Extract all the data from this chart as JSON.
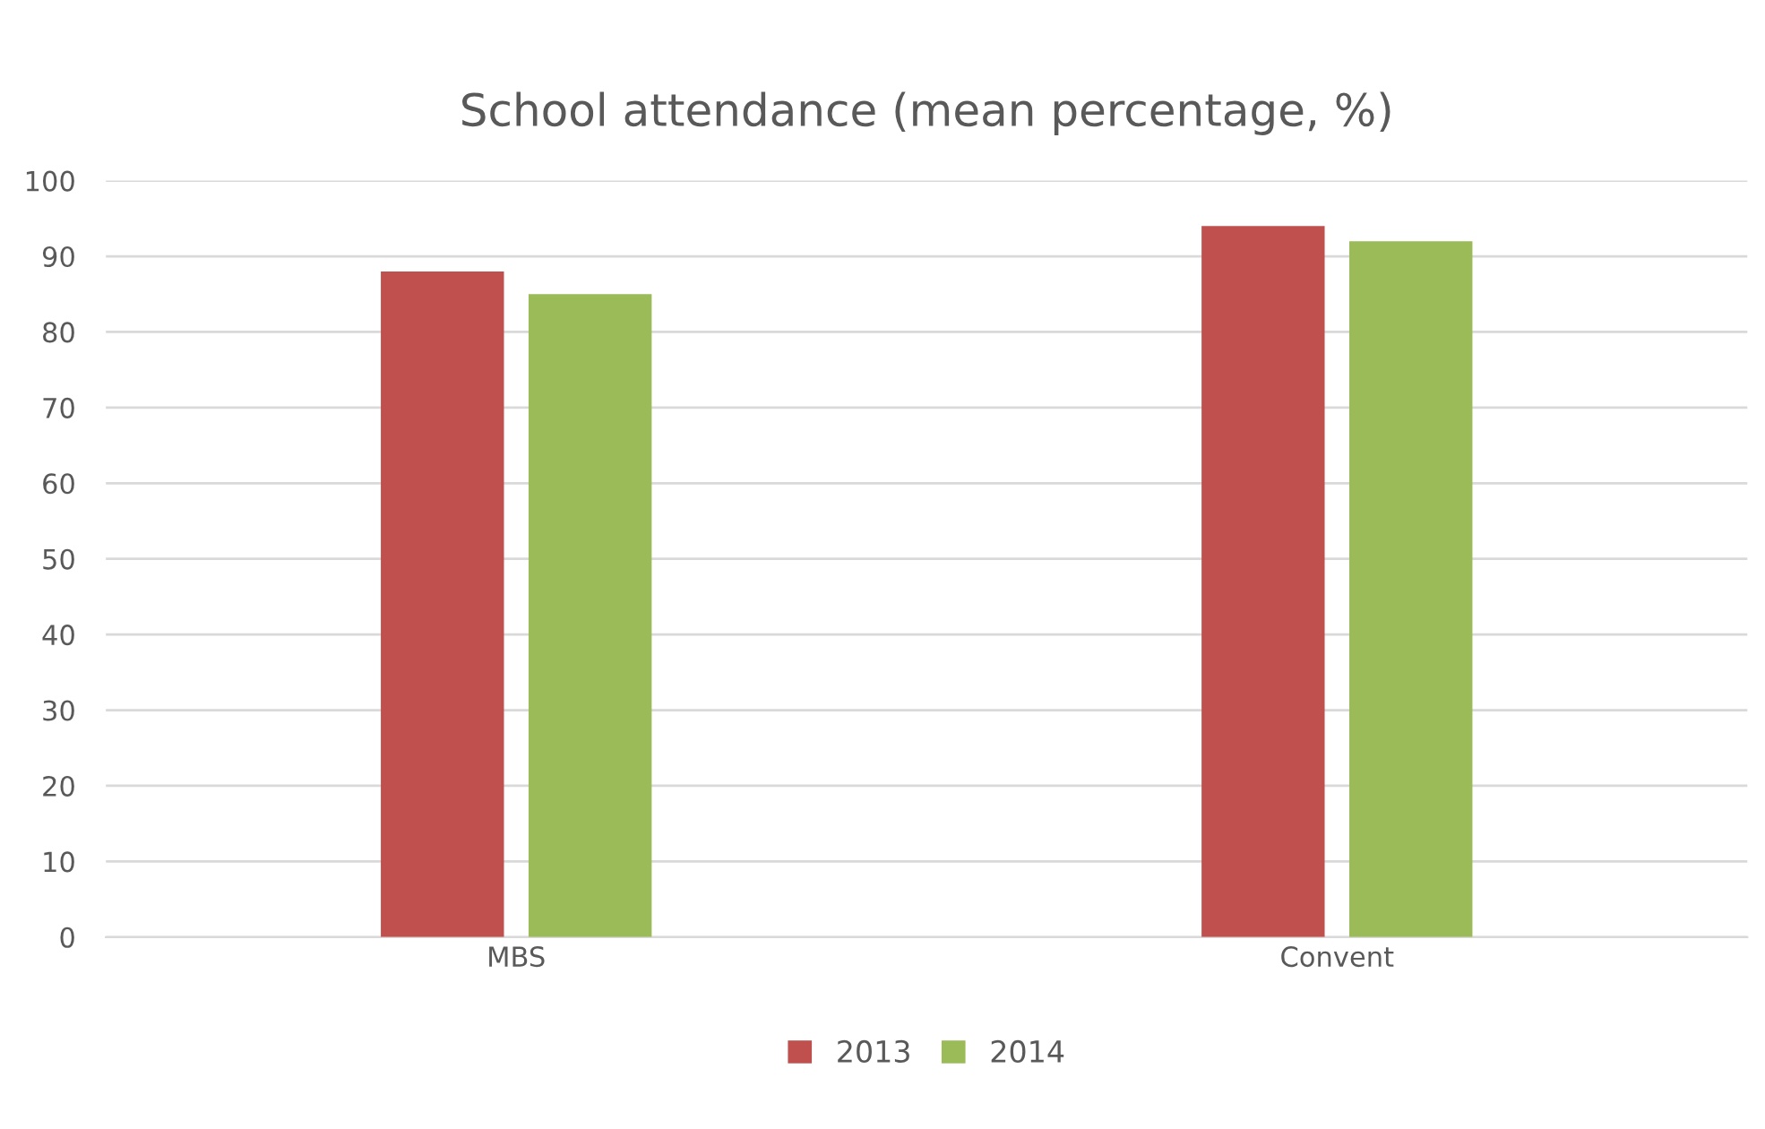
{
  "chart_data": {
    "type": "bar",
    "title": "School attendance (mean percentage, %)",
    "categories": [
      "MBS",
      "Convent"
    ],
    "series": [
      {
        "name": "2013",
        "color": "#c0504d",
        "values": [
          88,
          94
        ]
      },
      {
        "name": "2014",
        "color": "#9bbb59",
        "values": [
          85,
          92
        ]
      }
    ],
    "ylim": [
      0,
      100
    ],
    "yticks": [
      0,
      10,
      20,
      30,
      40,
      50,
      60,
      70,
      80,
      90,
      100
    ],
    "grid": "y",
    "legend": "bottom"
  }
}
